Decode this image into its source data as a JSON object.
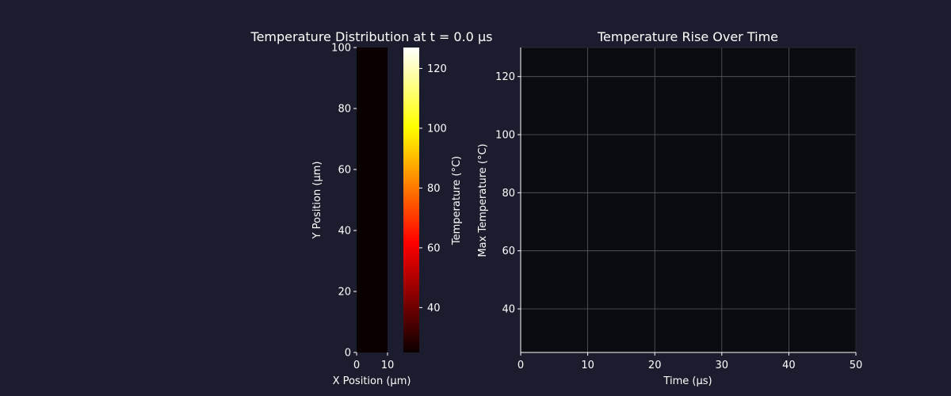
{
  "theme": {
    "figure_background": "#1b1c2e",
    "axes_background": "#0b0b12",
    "text_color": "#ffffff",
    "grid_color": "#5a5a62"
  },
  "chart_data": [
    {
      "type": "heatmap",
      "title": "Temperature Distribution at t = 0.0 μs",
      "xlabel": "X Position (μm)",
      "ylabel": "Y Position (μm)",
      "xlim": [
        0,
        10
      ],
      "ylim": [
        0,
        100
      ],
      "xticks": [
        0,
        10
      ],
      "yticks": [
        0,
        20,
        40,
        60,
        80,
        100
      ],
      "colormap": "hot",
      "uniform_value": 25,
      "fill_color": "#0b0000",
      "colorbar": {
        "label": "Temperature (°C)",
        "range": [
          25,
          127
        ],
        "ticks": [
          40,
          60,
          80,
          100,
          120
        ]
      }
    },
    {
      "type": "line",
      "title": "Temperature Rise Over Time",
      "xlabel": "Time (μs)",
      "ylabel": "Max Temperature (°C)",
      "xlim": [
        0,
        50
      ],
      "ylim": [
        25,
        130
      ],
      "xticks": [
        0,
        10,
        20,
        30,
        40,
        50
      ],
      "yticks": [
        40,
        60,
        80,
        100,
        120
      ],
      "grid": true,
      "series": []
    }
  ]
}
